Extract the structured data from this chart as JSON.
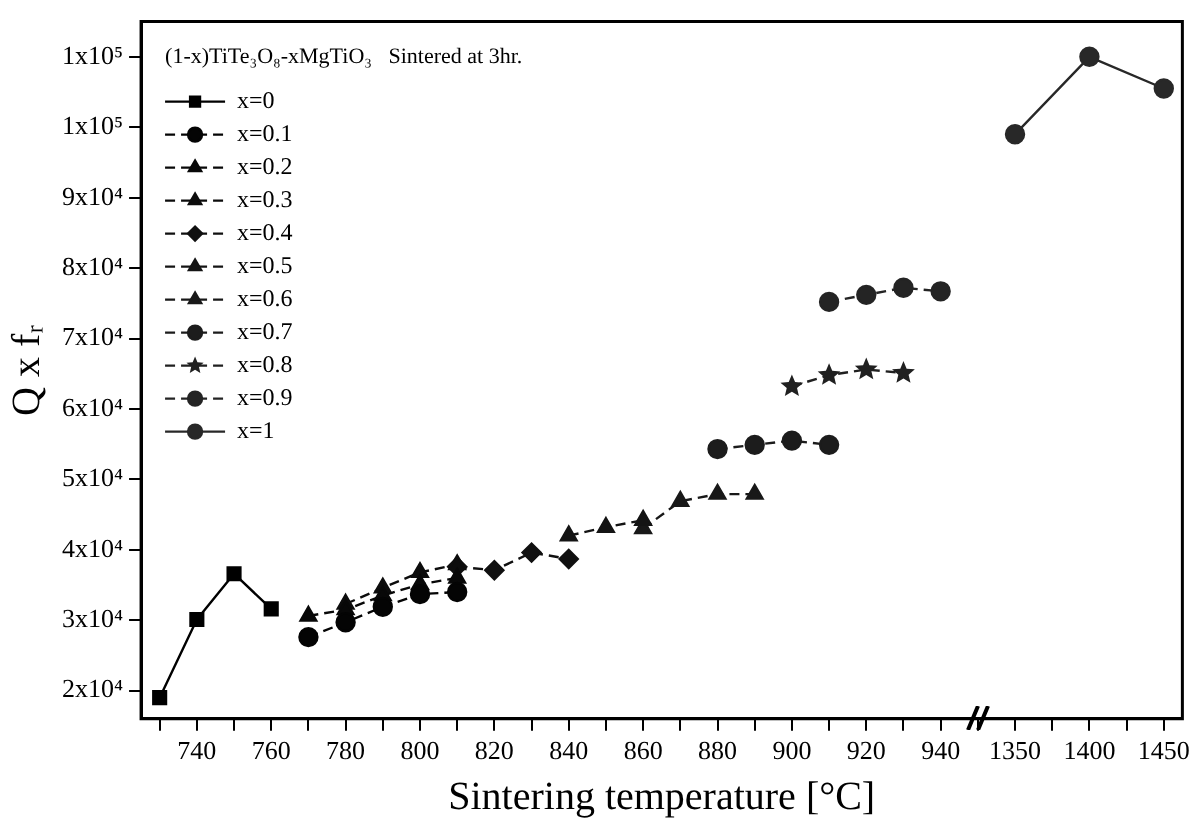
{
  "chart_data": {
    "type": "line",
    "legend_title": "(1-x)TiTe₃O₈-xMgTiO₃   Sintered at 3hr.",
    "xlabel": "Sintering temperature [°C]",
    "ylabel": "Q x fᵣ",
    "categories": [
      null,
      "740",
      null,
      "760",
      null,
      "780",
      null,
      "800",
      null,
      "820",
      null,
      "840",
      null,
      "860",
      null,
      "880",
      null,
      "900",
      null,
      "920",
      null,
      "940",
      null,
      "1350",
      null,
      "1400",
      null,
      "1450"
    ],
    "series": [
      {
        "name": "x=0",
        "color": "#000000",
        "marker": "square",
        "line_style": "solid",
        "values": [
          19000,
          30100,
          36600,
          31600,
          null,
          null,
          null,
          null,
          null,
          null,
          null,
          null,
          null,
          null,
          null,
          null,
          null,
          null,
          null,
          null,
          null,
          null,
          null,
          null,
          null,
          null,
          null,
          null
        ]
      },
      {
        "name": "x=0.1",
        "color": "#040404",
        "marker": "circle",
        "line_style": "dashed",
        "values": [
          null,
          null,
          null,
          null,
          27600,
          29700,
          31900,
          33700,
          34000,
          null,
          null,
          null,
          null,
          null,
          null,
          null,
          null,
          null,
          null,
          null,
          null,
          null,
          null,
          null,
          null,
          null,
          null,
          null
        ]
      },
      {
        "name": "x=0.2",
        "color": "#080808",
        "marker": "triangle",
        "line_style": "dashed",
        "values": [
          null,
          null,
          null,
          null,
          30600,
          31500,
          33500,
          35100,
          36000,
          null,
          null,
          null,
          null,
          null,
          null,
          null,
          null,
          null,
          null,
          null,
          null,
          null,
          null,
          null,
          null,
          null,
          null,
          null
        ]
      },
      {
        "name": "x=0.3",
        "color": "#0c0c0c",
        "marker": "triangle",
        "line_style": "dashed",
        "values": [
          null,
          null,
          null,
          null,
          null,
          32300,
          34600,
          36800,
          37900,
          null,
          null,
          null,
          null,
          null,
          null,
          null,
          null,
          null,
          null,
          null,
          null,
          null,
          null,
          null,
          null,
          null,
          null,
          null
        ]
      },
      {
        "name": "x=0.4",
        "color": "#101010",
        "marker": "diamond",
        "line_style": "dashed",
        "values": [
          null,
          null,
          null,
          null,
          null,
          null,
          null,
          null,
          37600,
          37100,
          39600,
          38700,
          null,
          null,
          null,
          null,
          null,
          null,
          null,
          null,
          null,
          null,
          null,
          null,
          null,
          null,
          null,
          null
        ]
      },
      {
        "name": "x=0.5",
        "color": "#141414",
        "marker": "triangle",
        "line_style": "dashed",
        "values": [
          null,
          null,
          null,
          null,
          null,
          null,
          null,
          null,
          null,
          null,
          null,
          42000,
          43200,
          44200,
          null,
          null,
          null,
          null,
          null,
          null,
          null,
          null,
          null,
          null,
          null,
          null,
          null,
          null
        ]
      },
      {
        "name": "x=0.6",
        "color": "#181818",
        "marker": "triangle",
        "line_style": "dashed",
        "values": [
          null,
          null,
          null,
          null,
          null,
          null,
          null,
          null,
          null,
          null,
          null,
          null,
          null,
          43000,
          46900,
          47900,
          47900,
          null,
          null,
          null,
          null,
          null,
          null,
          null,
          null,
          null,
          null,
          null
        ]
      },
      {
        "name": "x=0.7",
        "color": "#1c1c1c",
        "marker": "circle",
        "line_style": "dashed",
        "values": [
          null,
          null,
          null,
          null,
          null,
          null,
          null,
          null,
          null,
          null,
          null,
          null,
          null,
          null,
          null,
          54300,
          54900,
          55500,
          54900,
          null,
          null,
          null,
          null,
          null,
          null,
          null,
          null,
          null
        ]
      },
      {
        "name": "x=0.8",
        "color": "#202020",
        "marker": "star",
        "line_style": "dashed",
        "values": [
          null,
          null,
          null,
          null,
          null,
          null,
          null,
          null,
          null,
          null,
          null,
          null,
          null,
          null,
          null,
          null,
          null,
          63200,
          64800,
          65600,
          65100,
          null,
          null,
          null,
          null,
          null,
          null,
          null
        ]
      },
      {
        "name": "x=0.9",
        "color": "#242424",
        "marker": "circle",
        "line_style": "dashed",
        "values": [
          null,
          null,
          null,
          null,
          null,
          null,
          null,
          null,
          null,
          null,
          null,
          null,
          null,
          null,
          null,
          null,
          null,
          null,
          75200,
          76200,
          77200,
          76700,
          null,
          null,
          null,
          null,
          null,
          null
        ]
      },
      {
        "name": "x=1",
        "color": "#282828",
        "marker": "circle",
        "line_style": "solid",
        "values": [
          null,
          null,
          null,
          null,
          null,
          null,
          null,
          null,
          null,
          null,
          null,
          null,
          null,
          null,
          null,
          null,
          null,
          null,
          null,
          null,
          null,
          null,
          null,
          99000,
          null,
          110000,
          null,
          105500
        ]
      }
    ],
    "ylim": [
      16000,
      115000
    ],
    "yticks": [
      {
        "value": 20000,
        "label": "2x10⁴"
      },
      {
        "value": 30000,
        "label": "3x10⁴"
      },
      {
        "value": 40000,
        "label": "4x10⁴"
      },
      {
        "value": 50000,
        "label": "5x10⁴"
      },
      {
        "value": 60000,
        "label": "6x10⁴"
      },
      {
        "value": 70000,
        "label": "7x10⁴"
      },
      {
        "value": 80000,
        "label": "8x10⁴"
      },
      {
        "value": 90000,
        "label": "9x10⁴"
      },
      {
        "value": 100000,
        "label": "1x10⁵"
      },
      {
        "value": 110000,
        "label": "1x10⁵"
      }
    ],
    "grid": false,
    "legend": "top left"
  }
}
